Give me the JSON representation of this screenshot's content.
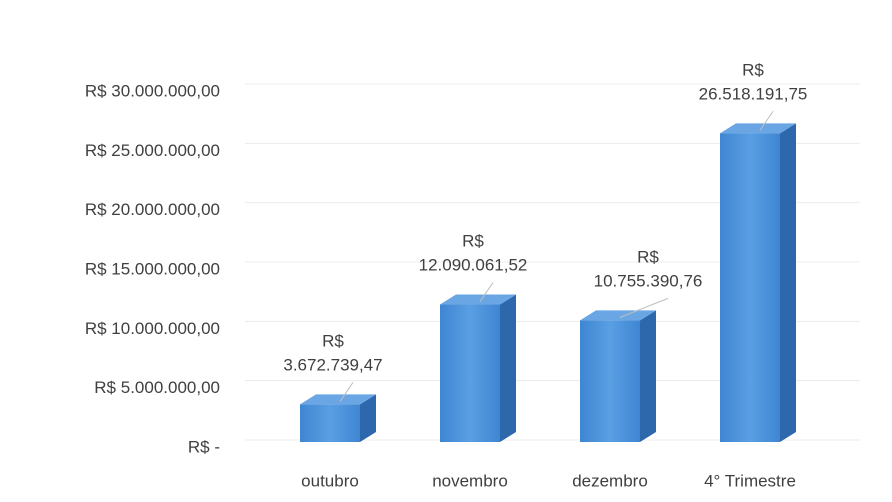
{
  "chart_data": {
    "type": "bar3d",
    "categories": [
      "outubro",
      "novembro",
      "dezembro",
      "4° Trimestre"
    ],
    "values": [
      3672739.47,
      12090061.52,
      10755390.76,
      26518191.75
    ],
    "value_labels": [
      "R$ 3.672.739,47",
      "R$ 12.090.061,52",
      "R$ 10.755.390,76",
      "R$ 26.518.191,75"
    ],
    "color": "#4a8fd6",
    "ylim": [
      0,
      30000000
    ],
    "yticks": [
      {
        "value": 0,
        "label": "R$ -"
      },
      {
        "value": 5000000,
        "label": "R$ 5.000.000,00"
      },
      {
        "value": 10000000,
        "label": "R$ 10.000.000,00"
      },
      {
        "value": 15000000,
        "label": "R$ 15.000.000,00"
      },
      {
        "value": 20000000,
        "label": "R$ 20.000.000,00"
      },
      {
        "value": 25000000,
        "label": "R$ 25.000.000,00"
      },
      {
        "value": 30000000,
        "label": "R$ 30.000.000,00"
      }
    ],
    "grid": true
  }
}
